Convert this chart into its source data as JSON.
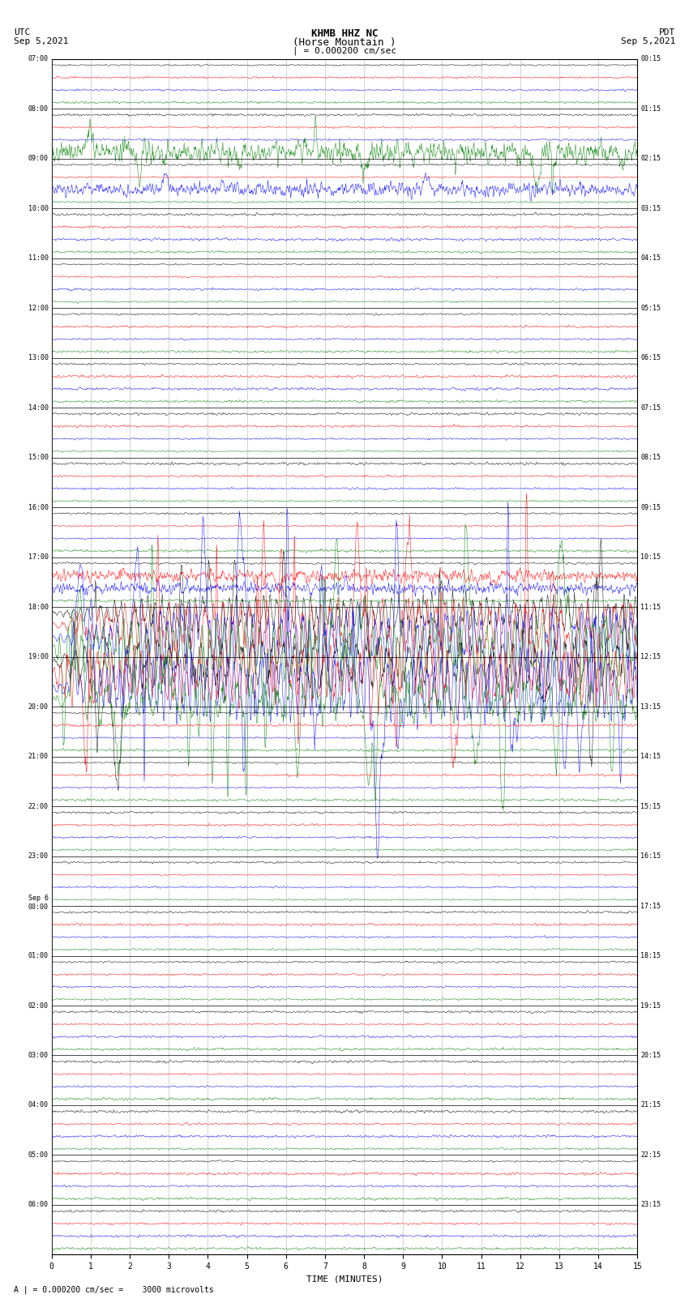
{
  "title_line1": "KHMB HHZ NC",
  "title_line2": "(Horse Mountain )",
  "scale_label": "| = 0.000200 cm/sec",
  "footer_label": "A | = 0.000200 cm/sec =    3000 microvolts",
  "utc_label": "UTC",
  "pdt_label": "PDT",
  "date_left": "Sep 5,2021",
  "date_right": "Sep 5,2021",
  "xlabel": "TIME (MINUTES)",
  "left_times": [
    "07:00",
    "08:00",
    "09:00",
    "10:00",
    "11:00",
    "12:00",
    "13:00",
    "14:00",
    "15:00",
    "16:00",
    "17:00",
    "18:00",
    "19:00",
    "20:00",
    "21:00",
    "22:00",
    "23:00",
    "Sep 6\n00:00",
    "01:00",
    "02:00",
    "03:00",
    "04:00",
    "05:00",
    "06:00"
  ],
  "right_times": [
    "00:15",
    "01:15",
    "02:15",
    "03:15",
    "04:15",
    "05:15",
    "06:15",
    "07:15",
    "08:15",
    "09:15",
    "10:15",
    "11:15",
    "12:15",
    "13:15",
    "14:15",
    "15:15",
    "16:15",
    "17:15",
    "18:15",
    "19:15",
    "20:15",
    "21:15",
    "22:15",
    "23:15"
  ],
  "n_rows": 24,
  "n_traces_per_row": 4,
  "trace_colors": [
    "#000000",
    "#ff0000",
    "#0000ff",
    "#008000"
  ],
  "background_color": "#ffffff",
  "plot_bg": "#ffffff",
  "x_ticks": [
    0,
    1,
    2,
    3,
    4,
    5,
    6,
    7,
    8,
    9,
    10,
    11,
    12,
    13,
    14,
    15
  ],
  "xlim": [
    0,
    15
  ],
  "fig_width": 8.5,
  "fig_height": 16.13
}
